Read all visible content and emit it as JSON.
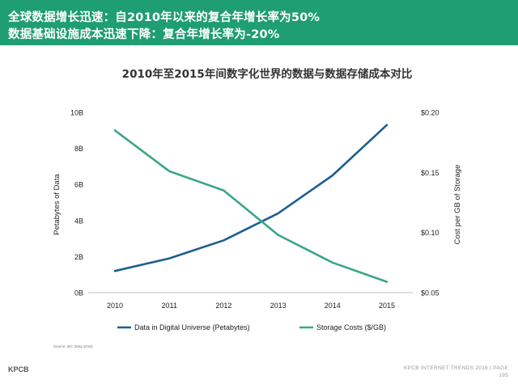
{
  "header": {
    "line1": "全球数据增长迅速：自2010年以来的复合年增长率为50%",
    "line2": "数据基础设施成本迅速下降：复合年增长率为-20%"
  },
  "footer": {
    "brand": "KPCB",
    "right_line1": "KPCB INTERNET TRENDS 2016  |  PAGE",
    "page": "195",
    "source": "Source: IDC (May 2016)"
  },
  "colors": {
    "header": "#1f9d73",
    "data_series": "#1d5f8f",
    "cost_series": "#3aa68a"
  },
  "chart_data": {
    "type": "line",
    "title": "2010年至2015年间数字化世界的数据与数据存储成本对比",
    "x": [
      "2010",
      "2011",
      "2012",
      "2013",
      "2014",
      "2015"
    ],
    "ylabel_left": "Petabytes of Data",
    "ylabel_right": "Cost per GB of Storage",
    "yleft_ticks": [
      "0B",
      "2B",
      "4B",
      "6B",
      "8B",
      "10B"
    ],
    "yleft_lim": [
      0,
      10
    ],
    "yright_ticks": [
      "$0.05",
      "$0.10",
      "$0.15",
      "$0.20"
    ],
    "yright_lim": [
      0.05,
      0.2
    ],
    "series": [
      {
        "name": "Data in Digital Universe (Petabytes)",
        "axis": "left",
        "values": [
          1.2,
          1.9,
          2.9,
          4.4,
          6.5,
          9.3
        ]
      },
      {
        "name": "Storage Costs ($/GB)",
        "axis": "right",
        "values": [
          0.185,
          0.151,
          0.135,
          0.098,
          0.075,
          0.059
        ]
      }
    ]
  }
}
